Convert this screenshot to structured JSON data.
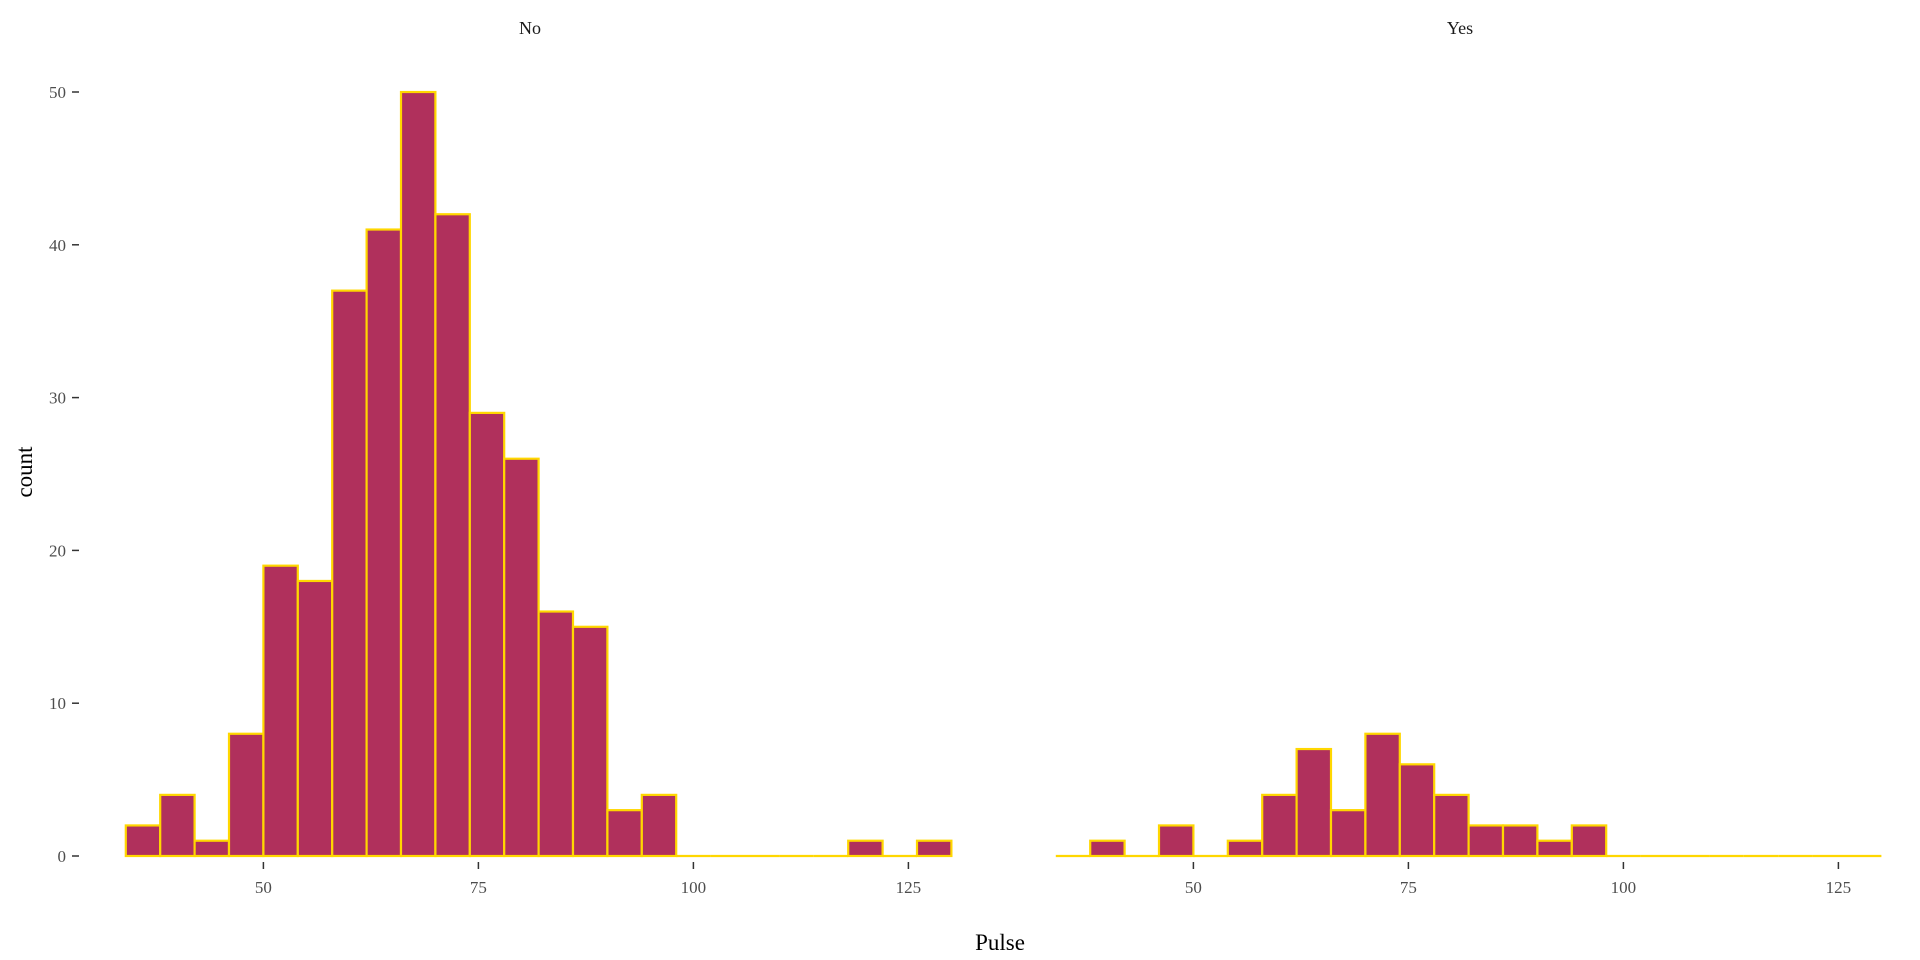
{
  "chart_data": {
    "type": "bar",
    "subtype": "faceted-histogram",
    "xlabel": "Pulse",
    "ylabel": "count",
    "bin_width": 4,
    "x_range": [
      31,
      131
    ],
    "ylim": [
      0,
      50
    ],
    "x_ticks": [
      50,
      75,
      100,
      125
    ],
    "y_ticks": [
      0,
      10,
      20,
      30,
      40,
      50
    ],
    "grid": false,
    "legend": "none",
    "fill_color": "#B0305C",
    "outline_color": "#FFD700",
    "panels": [
      {
        "name": "No",
        "bins": [
          {
            "x": 36,
            "count": 2
          },
          {
            "x": 40,
            "count": 4
          },
          {
            "x": 44,
            "count": 1
          },
          {
            "x": 48,
            "count": 8
          },
          {
            "x": 52,
            "count": 19
          },
          {
            "x": 56,
            "count": 18
          },
          {
            "x": 60,
            "count": 37
          },
          {
            "x": 64,
            "count": 41
          },
          {
            "x": 68,
            "count": 50
          },
          {
            "x": 72,
            "count": 42
          },
          {
            "x": 76,
            "count": 29
          },
          {
            "x": 80,
            "count": 26
          },
          {
            "x": 84,
            "count": 16
          },
          {
            "x": 88,
            "count": 15
          },
          {
            "x": 92,
            "count": 3
          },
          {
            "x": 96,
            "count": 4
          },
          {
            "x": 100,
            "count": 0
          },
          {
            "x": 104,
            "count": 0
          },
          {
            "x": 108,
            "count": 0
          },
          {
            "x": 112,
            "count": 0
          },
          {
            "x": 116,
            "count": 0
          },
          {
            "x": 120,
            "count": 1
          },
          {
            "x": 124,
            "count": 0
          },
          {
            "x": 128,
            "count": 1
          }
        ]
      },
      {
        "name": "Yes",
        "bins": [
          {
            "x": 36,
            "count": 0
          },
          {
            "x": 40,
            "count": 1
          },
          {
            "x": 44,
            "count": 0
          },
          {
            "x": 48,
            "count": 2
          },
          {
            "x": 52,
            "count": 0
          },
          {
            "x": 56,
            "count": 1
          },
          {
            "x": 60,
            "count": 4
          },
          {
            "x": 64,
            "count": 7
          },
          {
            "x": 68,
            "count": 3
          },
          {
            "x": 72,
            "count": 8
          },
          {
            "x": 76,
            "count": 6
          },
          {
            "x": 80,
            "count": 4
          },
          {
            "x": 84,
            "count": 2
          },
          {
            "x": 88,
            "count": 2
          },
          {
            "x": 92,
            "count": 1
          },
          {
            "x": 96,
            "count": 2
          },
          {
            "x": 100,
            "count": 0
          },
          {
            "x": 104,
            "count": 0
          },
          {
            "x": 108,
            "count": 0
          },
          {
            "x": 112,
            "count": 0
          },
          {
            "x": 116,
            "count": 0
          },
          {
            "x": 120,
            "count": 0
          },
          {
            "x": 124,
            "count": 0
          },
          {
            "x": 128,
            "count": 0
          }
        ]
      }
    ]
  }
}
